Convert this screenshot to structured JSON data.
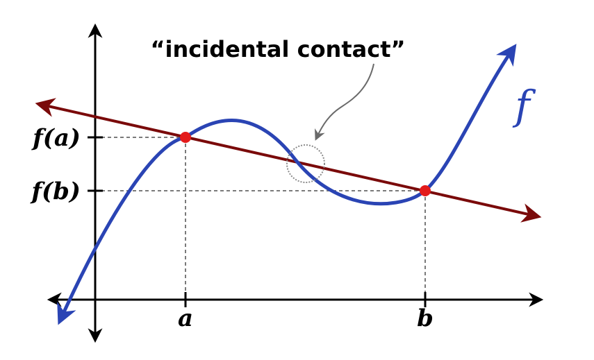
{
  "diagram": {
    "annotation": "“incidental contact”",
    "function_name": "f",
    "x_tick_a": "a",
    "x_tick_b": "b",
    "y_tick_fa": "f(a)",
    "y_tick_fb": "f(b)"
  },
  "colors": {
    "curve": "#2a44b4",
    "secant": "#7a0a0a",
    "points": "#e31b1b",
    "axes": "#000000",
    "guides": "#7a7a7a",
    "contact_circle": "#8a8a8a"
  }
}
